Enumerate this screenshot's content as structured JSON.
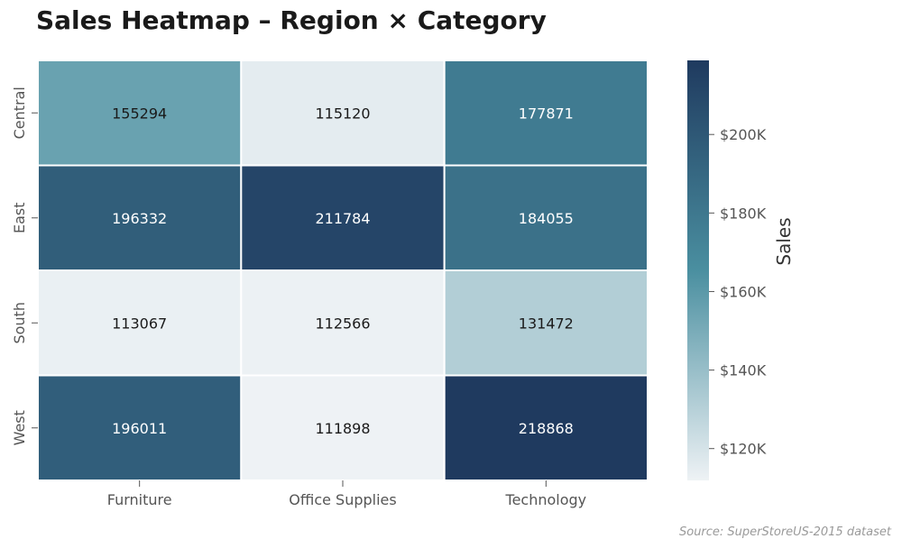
{
  "title": "Sales Heatmap – Region × Category",
  "source": "Source: SuperStoreUS-2015 dataset",
  "chart_data": {
    "type": "heatmap",
    "rows": [
      "Central",
      "East",
      "South",
      "West"
    ],
    "columns": [
      "Furniture",
      "Office Supplies",
      "Technology"
    ],
    "values": [
      [
        155294,
        115120,
        177871
      ],
      [
        196332,
        211784,
        184055
      ],
      [
        113067,
        112566,
        131472
      ],
      [
        196011,
        111898,
        218868
      ]
    ],
    "colorbar": {
      "label": "Sales",
      "range": [
        111898,
        218868
      ],
      "ticks": [
        120000,
        140000,
        160000,
        180000,
        200000
      ],
      "tick_labels": [
        "$120K",
        "$140K",
        "$160K",
        "$180K",
        "$200K"
      ]
    },
    "colors": {
      "low": "#eef2f5",
      "mid": "#4a8fa0",
      "high": "#1f3a5f",
      "text_dark": "#1a1a1a",
      "text_light": "#ffffff"
    }
  }
}
